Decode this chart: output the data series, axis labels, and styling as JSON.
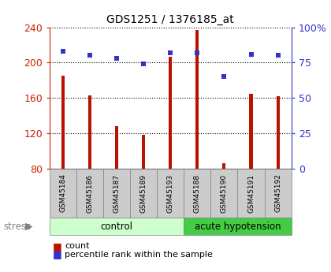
{
  "title": "GDS1251 / 1376185_at",
  "samples": [
    "GSM45184",
    "GSM45186",
    "GSM45187",
    "GSM45189",
    "GSM45193",
    "GSM45188",
    "GSM45190",
    "GSM45191",
    "GSM45192"
  ],
  "count_values": [
    185,
    163,
    128,
    118,
    207,
    237,
    86,
    165,
    162
  ],
  "percentile_values": [
    83,
    80,
    78,
    74,
    82,
    82,
    65,
    81,
    80
  ],
  "ylim_left": [
    80,
    240
  ],
  "ylim_right": [
    0,
    100
  ],
  "yticks_left": [
    80,
    120,
    160,
    200,
    240
  ],
  "yticks_right": [
    0,
    25,
    50,
    75,
    100
  ],
  "ytick_labels_right": [
    "0",
    "25",
    "50",
    "75",
    "100%"
  ],
  "bar_color": "#bb1100",
  "scatter_color": "#3333cc",
  "bar_width": 0.12,
  "n_control": 5,
  "n_acute": 4,
  "control_label": "control",
  "acute_label": "acute hypotension",
  "stress_label": "stress",
  "group_bg_control": "#ccffcc",
  "group_bg_acute": "#44cc44",
  "sample_bg": "#cccccc",
  "legend_count_label": "count",
  "legend_pct_label": "percentile rank within the sample",
  "title_fontsize": 10,
  "axis_label_color_left": "#cc2200",
  "axis_label_color_right": "#3333cc"
}
